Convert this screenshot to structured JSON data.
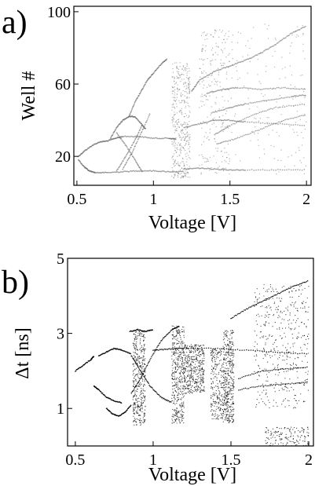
{
  "chart_data": [
    {
      "panel_label": "a)",
      "type": "scatter",
      "title": "",
      "xlabel": "Voltage [V]",
      "ylabel": "Well #",
      "xlim": [
        0.48,
        2.03
      ],
      "ylim": [
        4,
        103
      ],
      "xticks": [
        {
          "value": 0.5,
          "label": "0.5"
        },
        {
          "value": 1,
          "label": "1"
        },
        {
          "value": 1.5,
          "label": "1.5"
        },
        {
          "value": 2,
          "label": "2"
        }
      ],
      "yticks": [
        {
          "value": 20,
          "label": "20"
        },
        {
          "value": 60,
          "label": "60"
        },
        {
          "value": 100,
          "label": "100"
        }
      ],
      "point_color": "#555555",
      "series": [
        {
          "mode": "curve",
          "points": [
            [
              0.51,
              20
            ],
            [
              0.55,
              23
            ],
            [
              0.6,
              26
            ],
            [
              0.65,
              28
            ],
            [
              0.7,
              28.5
            ],
            [
              0.75,
              30
            ],
            [
              0.8,
              31
            ],
            [
              0.9,
              31
            ],
            [
              1.0,
              30
            ],
            [
              1.1,
              30
            ],
            [
              1.15,
              29.5
            ]
          ]
        },
        {
          "mode": "curve",
          "points": [
            [
              0.51,
              18
            ],
            [
              0.55,
              14
            ],
            [
              0.58,
              12
            ],
            [
              0.62,
              11
            ],
            [
              0.7,
              11
            ],
            [
              0.8,
              11.5
            ],
            [
              0.9,
              12
            ],
            [
              1.0,
              12
            ],
            [
              1.1,
              11.5
            ],
            [
              1.2,
              11.5
            ]
          ]
        },
        {
          "mode": "curve",
          "points": [
            [
              0.72,
              30
            ],
            [
              0.76,
              36
            ],
            [
              0.8,
              40
            ],
            [
              0.84,
              42
            ],
            [
              0.88,
              42
            ],
            [
              0.92,
              38
            ],
            [
              0.95,
              35
            ]
          ]
        },
        {
          "mode": "curve",
          "points": [
            [
              0.84,
              42
            ],
            [
              0.88,
              50
            ],
            [
              0.92,
              56
            ],
            [
              0.96,
              62
            ],
            [
              1.0,
              66
            ],
            [
              1.05,
              71
            ],
            [
              1.09,
              74
            ]
          ]
        },
        {
          "mode": "curve",
          "points": [
            [
              0.76,
              33
            ],
            [
              0.82,
              26
            ],
            [
              0.88,
              18
            ],
            [
              0.93,
              11
            ]
          ]
        },
        {
          "mode": "curve",
          "points": [
            [
              0.76,
              12
            ],
            [
              0.82,
              20
            ],
            [
              0.88,
              29
            ],
            [
              0.93,
              38
            ]
          ]
        },
        {
          "mode": "curve",
          "points": [
            [
              0.8,
              13
            ],
            [
              0.86,
              22
            ],
            [
              0.92,
              33
            ],
            [
              0.98,
              44
            ]
          ]
        },
        {
          "mode": "curve",
          "points": [
            [
              1.2,
              13
            ],
            [
              1.3,
              13.5
            ],
            [
              1.4,
              13
            ],
            [
              1.5,
              12.5
            ],
            [
              1.6,
              12.5
            ],
            [
              1.8,
              12.5
            ],
            [
              2.0,
              12.5
            ]
          ]
        },
        {
          "mode": "curve",
          "points": [
            [
              1.2,
              36
            ],
            [
              1.3,
              38
            ],
            [
              1.4,
              40
            ],
            [
              1.5,
              40
            ],
            [
              1.6,
              39
            ],
            [
              1.8,
              38
            ],
            [
              2.0,
              37
            ]
          ]
        },
        {
          "mode": "curve",
          "points": [
            [
              1.25,
              56
            ],
            [
              1.3,
              62
            ],
            [
              1.4,
              67
            ],
            [
              1.5,
              70
            ],
            [
              1.6,
              73
            ],
            [
              1.7,
              77
            ],
            [
              1.8,
              82
            ],
            [
              1.9,
              88
            ],
            [
              2.0,
              92
            ]
          ]
        },
        {
          "mode": "curve",
          "points": [
            [
              1.35,
              55
            ],
            [
              1.45,
              57
            ],
            [
              1.55,
              58
            ],
            [
              1.7,
              57
            ],
            [
              1.85,
              58
            ],
            [
              2.0,
              57
            ]
          ]
        },
        {
          "mode": "curve",
          "points": [
            [
              1.38,
              44
            ],
            [
              1.5,
              47
            ],
            [
              1.6,
              49
            ],
            [
              1.75,
              51
            ],
            [
              1.9,
              53
            ],
            [
              2.0,
              54
            ]
          ]
        },
        {
          "mode": "curve",
          "points": [
            [
              1.4,
              32
            ],
            [
              1.5,
              37
            ],
            [
              1.65,
              43
            ],
            [
              1.8,
              47
            ],
            [
              2.0,
              49
            ]
          ]
        },
        {
          "mode": "curve",
          "points": [
            [
              1.42,
              27
            ],
            [
              1.55,
              30
            ],
            [
              1.7,
              35
            ],
            [
              1.85,
              40
            ],
            [
              2.0,
              43
            ]
          ]
        },
        {
          "mode": "band",
          "x": [
            1.12,
            1.24
          ],
          "y": [
            8,
            72
          ],
          "density": "high"
        },
        {
          "mode": "band",
          "x": [
            1.3,
            1.5
          ],
          "y": [
            10,
            90
          ],
          "density": "medium"
        },
        {
          "mode": "band",
          "x": [
            1.5,
            2.0
          ],
          "y": [
            10,
            95
          ],
          "density": "low"
        }
      ]
    },
    {
      "panel_label": "b)",
      "type": "scatter",
      "title": "",
      "xlabel": "Voltage [V]",
      "ylabel": "Δt [ns]",
      "xlim": [
        0.45,
        2.03
      ],
      "ylim": [
        0.0,
        5.0
      ],
      "xticks": [
        {
          "value": 0.5,
          "label": "0.5"
        },
        {
          "value": 1,
          "label": "1"
        },
        {
          "value": 1.5,
          "label": "1.5"
        },
        {
          "value": 2,
          "label": "2"
        }
      ],
      "yticks": [
        {
          "value": 1,
          "label": "1"
        },
        {
          "value": 3,
          "label": "3"
        },
        {
          "value": 5,
          "label": "5"
        }
      ],
      "point_color": "#000000",
      "series": [
        {
          "mode": "curve",
          "points": [
            [
              0.5,
              2.0
            ],
            [
              0.55,
              2.15
            ],
            [
              0.6,
              2.3
            ],
            [
              0.62,
              2.4
            ]
          ]
        },
        {
          "mode": "curve",
          "points": [
            [
              0.62,
              1.6
            ],
            [
              0.65,
              1.5
            ],
            [
              0.7,
              1.3
            ],
            [
              0.75,
              1.2
            ],
            [
              0.8,
              1.15
            ]
          ]
        },
        {
          "mode": "curve",
          "points": [
            [
              0.65,
              2.4
            ],
            [
              0.7,
              2.5
            ],
            [
              0.75,
              2.6
            ],
            [
              0.8,
              2.55
            ],
            [
              0.86,
              2.45
            ]
          ]
        },
        {
          "mode": "curve",
          "points": [
            [
              0.7,
              1.0
            ],
            [
              0.74,
              0.85
            ],
            [
              0.78,
              0.8
            ],
            [
              0.82,
              0.9
            ],
            [
              0.86,
              1.1
            ]
          ]
        },
        {
          "mode": "curve",
          "points": [
            [
              0.86,
              1.4
            ],
            [
              0.92,
              1.8
            ],
            [
              0.98,
              2.3
            ],
            [
              1.05,
              2.8
            ],
            [
              1.12,
              3.1
            ],
            [
              1.17,
              3.2
            ]
          ]
        },
        {
          "mode": "curve",
          "points": [
            [
              0.86,
              2.4
            ],
            [
              0.92,
              2.0
            ],
            [
              0.98,
              1.6
            ],
            [
              1.05,
              1.3
            ],
            [
              1.12,
              1.15
            ]
          ]
        },
        {
          "mode": "curve",
          "points": [
            [
              1.0,
              2.55
            ],
            [
              1.1,
              2.58
            ],
            [
              1.2,
              2.6
            ],
            [
              1.4,
              2.6
            ],
            [
              1.6,
              2.55
            ],
            [
              1.8,
              2.5
            ],
            [
              2.0,
              2.45
            ]
          ]
        },
        {
          "mode": "curve",
          "points": [
            [
              1.5,
              3.4
            ],
            [
              1.6,
              3.65
            ],
            [
              1.7,
              3.85
            ],
            [
              1.8,
              4.05
            ],
            [
              1.9,
              4.25
            ],
            [
              2.0,
              4.4
            ]
          ]
        },
        {
          "mode": "curve",
          "points": [
            [
              1.55,
              1.8
            ],
            [
              1.7,
              2.0
            ],
            [
              1.85,
              2.05
            ],
            [
              2.0,
              2.1
            ]
          ]
        },
        {
          "mode": "curve",
          "points": [
            [
              1.55,
              1.5
            ],
            [
              1.7,
              1.6
            ],
            [
              1.85,
              1.65
            ],
            [
              2.0,
              1.7
            ]
          ]
        },
        {
          "mode": "curve",
          "points": [
            [
              0.85,
              3.05
            ],
            [
              0.9,
              3.1
            ],
            [
              0.95,
              3.05
            ],
            [
              1.0,
              3.1
            ]
          ]
        },
        {
          "mode": "band",
          "x": [
            0.87,
            0.95
          ],
          "y": [
            0.55,
            3.05
          ],
          "density": "high"
        },
        {
          "mode": "band",
          "x": [
            1.12,
            1.2
          ],
          "y": [
            0.6,
            3.2
          ],
          "density": "high"
        },
        {
          "mode": "band",
          "x": [
            1.2,
            1.33
          ],
          "y": [
            1.4,
            2.7
          ],
          "density": "high"
        },
        {
          "mode": "band",
          "x": [
            1.37,
            1.45
          ],
          "y": [
            0.7,
            2.6
          ],
          "density": "medium"
        },
        {
          "mode": "band",
          "x": [
            1.45,
            1.52
          ],
          "y": [
            0.6,
            3.1
          ],
          "density": "high"
        },
        {
          "mode": "band",
          "x": [
            1.65,
            2.0
          ],
          "y": [
            1.0,
            4.3
          ],
          "density": "high"
        },
        {
          "mode": "band",
          "x": [
            1.72,
            2.0
          ],
          "y": [
            0.0,
            0.5
          ],
          "density": "low"
        }
      ]
    }
  ]
}
